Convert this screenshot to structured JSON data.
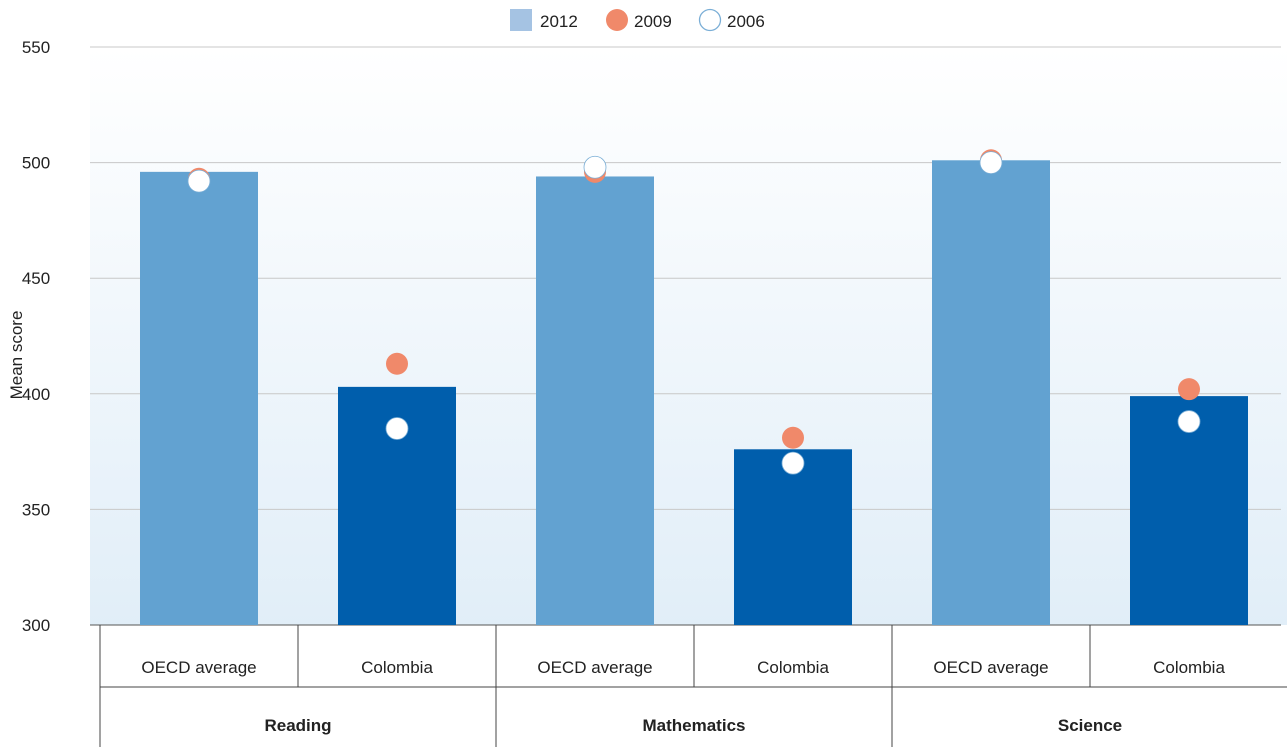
{
  "chart_data": {
    "type": "bar",
    "title": "",
    "xlabel": "",
    "ylabel": "Mean score",
    "ylim": [
      300,
      550
    ],
    "yticks": [
      300,
      350,
      400,
      450,
      500,
      550
    ],
    "grid": true,
    "legend_position": "top-center",
    "groups": [
      "Reading",
      "Mathematics",
      "Science"
    ],
    "categories": [
      "OECD average",
      "Colombia",
      "OECD average",
      "Colombia",
      "OECD average",
      "Colombia"
    ],
    "series": [
      {
        "name": "2012",
        "marker": "bar",
        "values": [
          496,
          403,
          494,
          376,
          501,
          399
        ]
      },
      {
        "name": "2009",
        "marker": "circle",
        "values": [
          493,
          413,
          496,
          381,
          501,
          402
        ]
      },
      {
        "name": "2006",
        "marker": "circle",
        "values": [
          492,
          385,
          498,
          370,
          500,
          388
        ]
      }
    ],
    "colors": {
      "bar_oecd": "#62a2d1",
      "bar_country": "#005eac",
      "legend_bar": "#a5c3e3",
      "dot_2009": "#f0896a",
      "dot_2006_fill": "#ffffff",
      "dot_2006_stroke": "#7aaed6",
      "grid": "#c8c8c8",
      "bg_top": "#ffffff",
      "bg_bottom": "#e1eef8"
    }
  }
}
